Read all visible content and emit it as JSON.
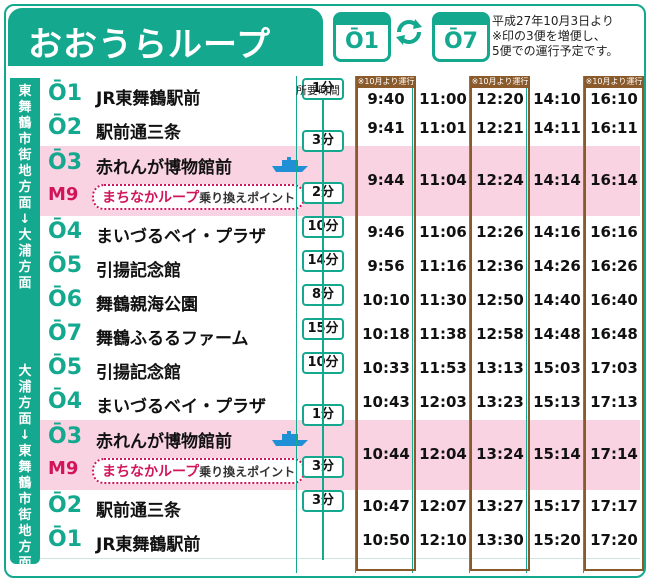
{
  "title": "おおうらループ",
  "route_from": "Ō1",
  "route_to": "Ō7",
  "note": [
    "平成27年10月3日より",
    "※印の3便を増便し、",
    "5便での運行予定です。"
  ],
  "side_labels": {
    "top": [
      "東",
      "舞",
      "鶴",
      "市",
      "街",
      "地",
      "方",
      "面",
      "↓",
      "大",
      "浦",
      "方",
      "面"
    ],
    "bottom": [
      "大",
      "浦",
      "方",
      "面",
      "↓",
      "東",
      "舞",
      "鶴",
      "市",
      "街",
      "地",
      "方",
      "面"
    ]
  },
  "header_label": "所要時間",
  "badge": "※10月より運行",
  "transfer": {
    "code": "M9",
    "name": "まちなかループ",
    "suffix": "乗り換えポイント"
  },
  "rows": [
    {
      "code": "Ō1",
      "name": "JR東舞鶴駅前",
      "dur": "",
      "times": [
        "9:40",
        "11:00",
        "12:20",
        "14:10",
        "16:10"
      ]
    },
    {
      "code": "Ō2",
      "name": "駅前通三条",
      "dur": "1分",
      "times": [
        "9:41",
        "11:01",
        "12:21",
        "14:11",
        "16:11"
      ]
    },
    {
      "code": "Ō3",
      "name": "赤れんが博物館前",
      "dur": "3分",
      "times": [
        "9:44",
        "11:04",
        "12:24",
        "14:14",
        "16:14"
      ],
      "transfer": true
    },
    {
      "code": "Ō4",
      "name": "まいづるベイ・プラザ",
      "dur": "2分",
      "times": [
        "9:46",
        "11:06",
        "12:26",
        "14:16",
        "16:16"
      ]
    },
    {
      "code": "Ō5",
      "name": "引揚記念館",
      "dur": "10分",
      "times": [
        "9:56",
        "11:16",
        "12:36",
        "14:26",
        "16:26"
      ]
    },
    {
      "code": "Ō6",
      "name": "舞鶴親海公園",
      "dur": "14分",
      "times": [
        "10:10",
        "11:30",
        "12:50",
        "14:40",
        "16:40"
      ]
    },
    {
      "code": "Ō7",
      "name": "舞鶴ふるるファーム",
      "dur": "8分",
      "times": [
        "10:18",
        "11:38",
        "12:58",
        "14:48",
        "16:48"
      ]
    },
    {
      "code": "Ō5",
      "name": "引揚記念館",
      "dur": "15分",
      "times": [
        "10:33",
        "11:53",
        "13:13",
        "15:03",
        "17:03"
      ]
    },
    {
      "code": "Ō4",
      "name": "まいづるベイ・プラザ",
      "dur": "10分",
      "times": [
        "10:43",
        "12:03",
        "13:23",
        "15:13",
        "17:13"
      ]
    },
    {
      "code": "Ō3",
      "name": "赤れんが博物館前",
      "dur": "1分",
      "times": [
        "10:44",
        "12:04",
        "13:24",
        "15:14",
        "17:14"
      ],
      "transfer": true
    },
    {
      "code": "Ō2",
      "name": "駅前通三条",
      "dur": "3分",
      "times": [
        "10:47",
        "12:07",
        "13:27",
        "15:17",
        "17:17"
      ]
    },
    {
      "code": "Ō1",
      "name": "JR東舞鶴駅前",
      "dur": "3分",
      "times": [
        "10:50",
        "12:10",
        "13:30",
        "15:20",
        "17:20"
      ]
    }
  ],
  "colors": {
    "teal": "#14a88f",
    "pink": "#f9d3e2",
    "magenta": "#d2145a",
    "brown": "#8a5a2b"
  }
}
